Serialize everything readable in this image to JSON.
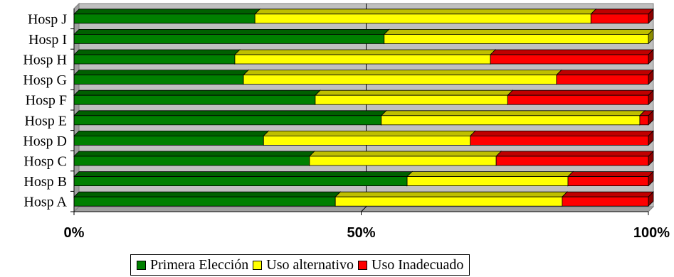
{
  "chart_data": {
    "type": "bar",
    "orientation": "horizontal",
    "stacked": "percent",
    "categories": [
      "Hosp A",
      "Hosp B",
      "Hosp C",
      "Hosp D",
      "Hosp E",
      "Hosp F",
      "Hosp G",
      "Hosp H",
      "Hosp I",
      "Hosp J"
    ],
    "series": [
      {
        "name": "Primera Elección",
        "color": "#008000",
        "values": [
          45.5,
          58,
          41,
          33,
          53.5,
          42,
          29.5,
          28,
          54,
          31.5
        ]
      },
      {
        "name": "Uso alternativo",
        "color": "#ffff00",
        "values": [
          39.5,
          28,
          32.5,
          36,
          45,
          33.5,
          54.5,
          44.5,
          46,
          58.5
        ]
      },
      {
        "name": "Uso Inadecuado",
        "color": "#ff0000",
        "values": [
          15,
          14,
          26.5,
          31,
          1.5,
          24.5,
          16,
          27.5,
          0,
          10
        ]
      }
    ],
    "xlim": [
      0,
      100
    ],
    "x_ticks": [
      "0%",
      "50%",
      "100%"
    ],
    "title": "",
    "xlabel": "",
    "ylabel": "",
    "grid": "vertical-at-50",
    "legend_position": "bottom",
    "style": "3d"
  }
}
